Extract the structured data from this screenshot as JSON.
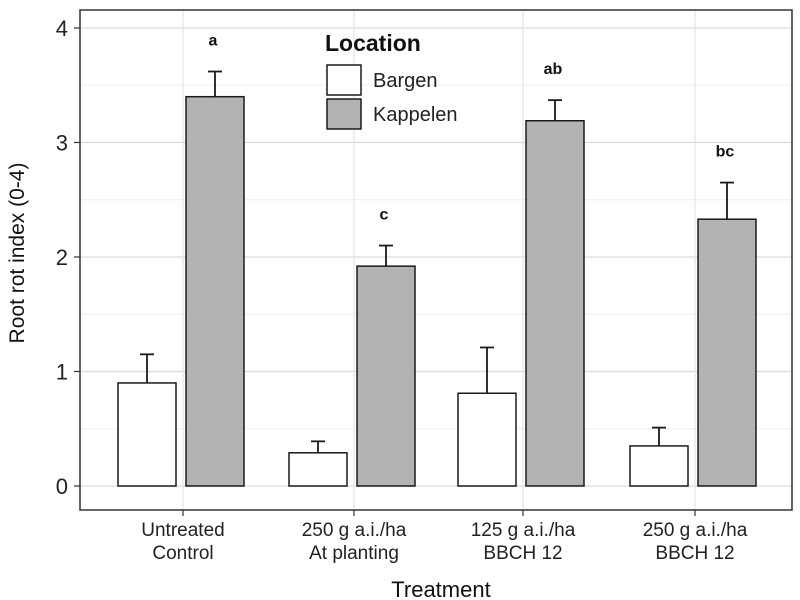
{
  "chart_data": {
    "type": "bar",
    "xlabel": "Treatment",
    "ylabel": "Root rot index (0-4)",
    "ylim": [
      0,
      4
    ],
    "yticks": [
      0,
      1,
      2,
      3,
      4
    ],
    "grid": true,
    "legend": {
      "title": "Location",
      "placement": "top-center"
    },
    "categories": [
      [
        "Untreated",
        "Control"
      ],
      [
        "250 g a.i./ha",
        "At planting"
      ],
      [
        "125 g a.i./ha",
        "BBCH 12"
      ],
      [
        "250 g a.i./ha",
        "BBCH 12"
      ]
    ],
    "series": [
      {
        "name": "Bargen",
        "color": "#ffffff",
        "values": [
          0.9,
          0.29,
          0.81,
          0.35
        ],
        "errors": [
          0.25,
          0.1,
          0.4,
          0.16
        ]
      },
      {
        "name": "Kappelen",
        "color": "#b3b3b3",
        "values": [
          3.4,
          1.92,
          3.19,
          2.33
        ],
        "errors": [
          0.22,
          0.18,
          0.18,
          0.32
        ]
      }
    ],
    "annotations": [
      "a",
      "c",
      "ab",
      "bc"
    ]
  }
}
